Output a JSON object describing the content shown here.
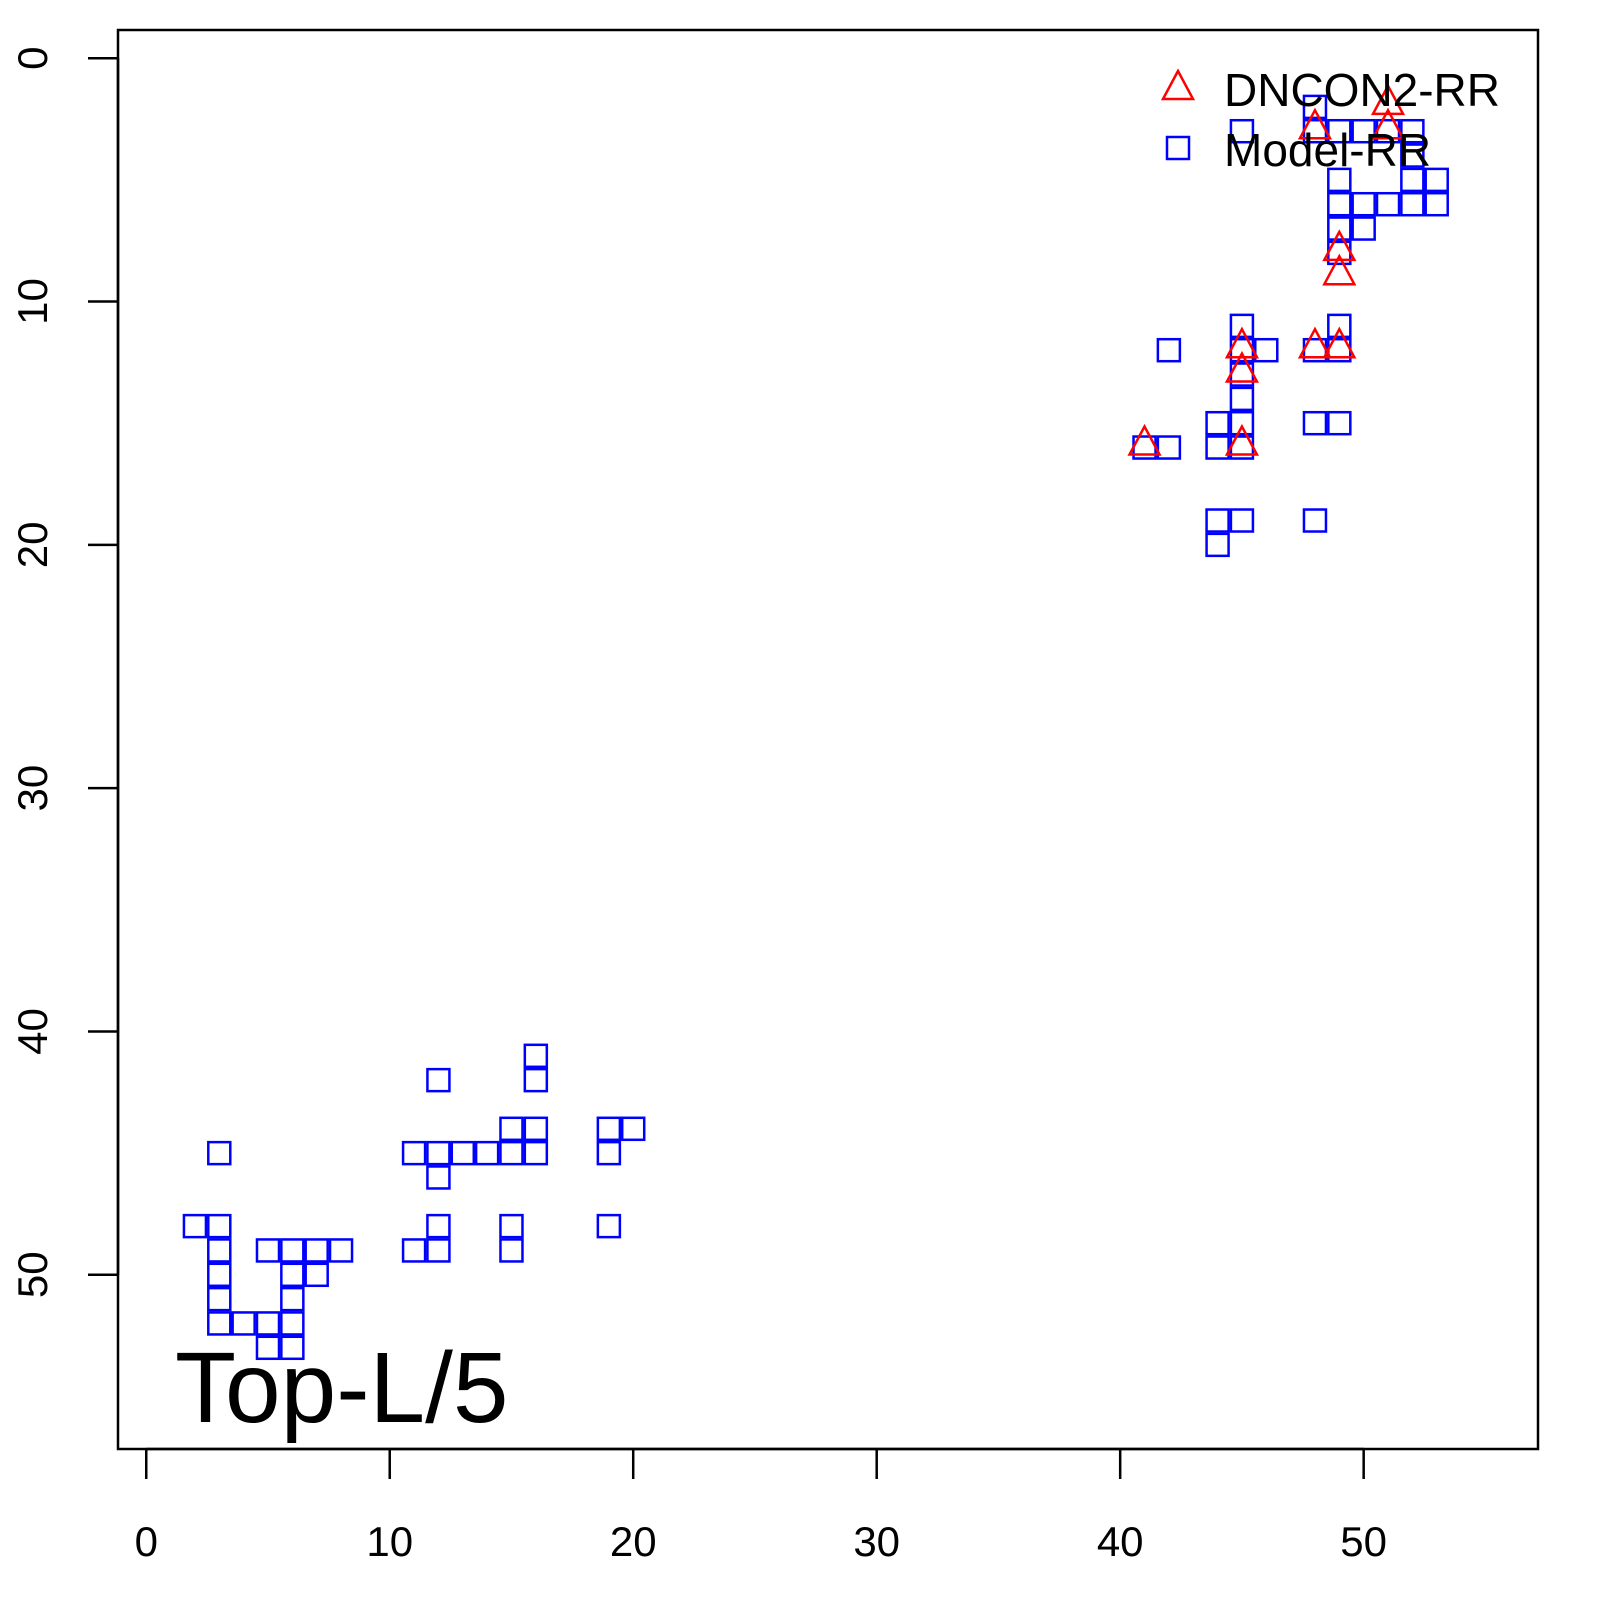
{
  "chart_data": {
    "type": "scatter",
    "title": "",
    "xlabel": "",
    "ylabel": "",
    "xlim": [
      -1.16,
      57.16
    ],
    "ylim": [
      -1.16,
      57.16
    ],
    "y_reversed": true,
    "grid": false,
    "x_ticks": [
      0,
      10,
      20,
      30,
      40,
      50
    ],
    "y_ticks": [
      0,
      10,
      20,
      30,
      40,
      50
    ],
    "annotation": "Top-L/5",
    "legend_placement": "top-right",
    "series": [
      {
        "name": "DNCON2-RR",
        "marker": "triangle",
        "color": "#ff0000",
        "points": [
          [
            51,
            2
          ],
          [
            51,
            3
          ],
          [
            48,
            3
          ],
          [
            49,
            8
          ],
          [
            49,
            9
          ],
          [
            45,
            12
          ],
          [
            45,
            13
          ],
          [
            48,
            12
          ],
          [
            49,
            12
          ],
          [
            41,
            16
          ],
          [
            45,
            16
          ]
        ]
      },
      {
        "name": "Model-RR",
        "marker": "square",
        "color": "#0000ff",
        "points": [
          [
            3,
            45
          ],
          [
            2,
            48
          ],
          [
            3,
            48
          ],
          [
            3,
            49
          ],
          [
            3,
            50
          ],
          [
            3,
            51
          ],
          [
            3,
            52
          ],
          [
            4,
            52
          ],
          [
            5,
            52
          ],
          [
            5,
            53
          ],
          [
            6,
            53
          ],
          [
            6,
            52
          ],
          [
            6,
            51
          ],
          [
            6,
            50
          ],
          [
            6,
            49
          ],
          [
            5,
            49
          ],
          [
            7,
            49
          ],
          [
            7,
            50
          ],
          [
            8,
            49
          ],
          [
            12,
            42
          ],
          [
            11,
            45
          ],
          [
            12,
            45
          ],
          [
            12,
            46
          ],
          [
            13,
            45
          ],
          [
            14,
            45
          ],
          [
            15,
            45
          ],
          [
            15,
            44
          ],
          [
            16,
            44
          ],
          [
            16,
            45
          ],
          [
            16,
            41
          ],
          [
            16,
            42
          ],
          [
            11,
            49
          ],
          [
            12,
            48
          ],
          [
            12,
            49
          ],
          [
            15,
            48
          ],
          [
            15,
            49
          ],
          [
            19,
            44
          ],
          [
            19,
            45
          ],
          [
            20,
            44
          ],
          [
            19,
            48
          ],
          [
            48,
            2
          ],
          [
            45,
            3
          ],
          [
            48,
            3
          ],
          [
            49,
            3
          ],
          [
            50,
            3
          ],
          [
            51,
            3
          ],
          [
            52,
            3
          ],
          [
            52,
            4
          ],
          [
            49,
            5
          ],
          [
            52,
            5
          ],
          [
            53,
            5
          ],
          [
            49,
            6
          ],
          [
            50,
            6
          ],
          [
            51,
            6
          ],
          [
            52,
            6
          ],
          [
            53,
            6
          ],
          [
            49,
            7
          ],
          [
            50,
            7
          ],
          [
            49,
            8
          ],
          [
            45,
            11
          ],
          [
            49,
            11
          ],
          [
            42,
            12
          ],
          [
            45,
            12
          ],
          [
            46,
            12
          ],
          [
            48,
            12
          ],
          [
            49,
            12
          ],
          [
            45,
            13
          ],
          [
            45,
            14
          ],
          [
            44,
            15
          ],
          [
            45,
            15
          ],
          [
            48,
            15
          ],
          [
            49,
            15
          ],
          [
            41,
            16
          ],
          [
            42,
            16
          ],
          [
            44,
            16
          ],
          [
            45,
            16
          ],
          [
            44,
            19
          ],
          [
            45,
            19
          ],
          [
            48,
            19
          ],
          [
            44,
            20
          ]
        ]
      }
    ]
  }
}
